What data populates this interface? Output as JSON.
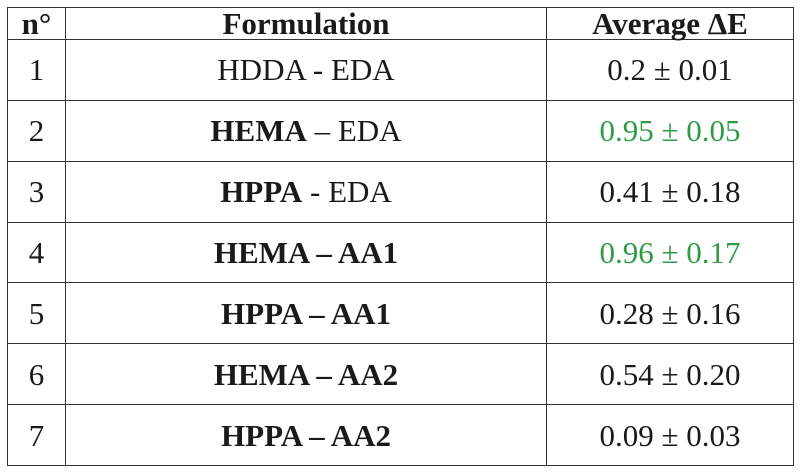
{
  "table": {
    "headers": [
      "n°",
      "Formulation",
      "Average ΔE"
    ],
    "rows": [
      {
        "num": "1",
        "form_a": "HDDA",
        "sep": " - ",
        "form_b": "EDA",
        "a_bold": false,
        "b_bold": false,
        "avg": "0.2 ± 0.01",
        "highlight": false
      },
      {
        "num": "2",
        "form_a": "HEMA",
        "sep": " – ",
        "form_b": "EDA",
        "a_bold": true,
        "b_bold": false,
        "avg": "0.95 ± 0.05",
        "highlight": true
      },
      {
        "num": "3",
        "form_a": "HPPA",
        "sep": " - ",
        "form_b": "EDA",
        "a_bold": true,
        "b_bold": false,
        "avg": "0.41 ± 0.18",
        "highlight": false
      },
      {
        "num": "4",
        "form_a": "HEMA",
        "sep": " – ",
        "form_b": "AA1",
        "a_bold": true,
        "b_bold": true,
        "avg": "0.96 ± 0.17",
        "highlight": true
      },
      {
        "num": "5",
        "form_a": "HPPA",
        "sep": " – ",
        "form_b": "AA1",
        "a_bold": true,
        "b_bold": true,
        "avg": "0.28 ± 0.16",
        "highlight": false
      },
      {
        "num": "6",
        "form_a": "HEMA",
        "sep": " – ",
        "form_b": "AA2",
        "a_bold": true,
        "b_bold": true,
        "avg": "0.54 ± 0.20",
        "highlight": false
      },
      {
        "num": "7",
        "form_a": "HPPA",
        "sep": " – ",
        "form_b": "AA2",
        "a_bold": true,
        "b_bold": true,
        "avg": "0.09 ± 0.03",
        "highlight": false
      }
    ]
  },
  "colors": {
    "highlight_text": "#2e9c47",
    "border": "#333333",
    "text": "#1a1a1a"
  }
}
